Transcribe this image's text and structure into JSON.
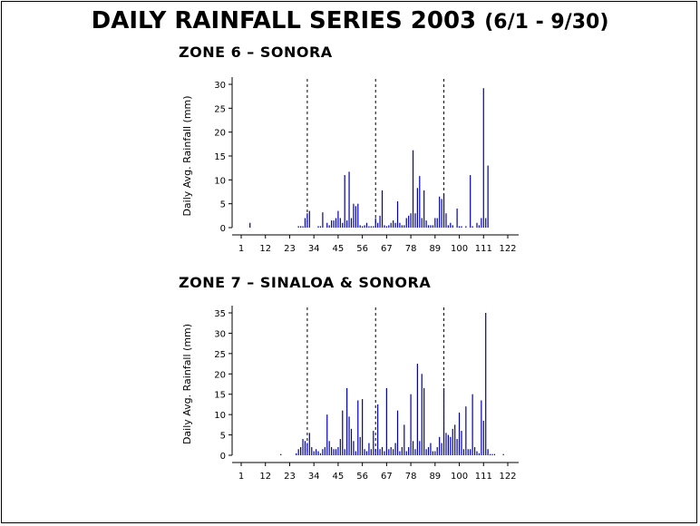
{
  "title": "DAILY RAINFALL SERIES 2003",
  "subtitle": "(6/1 - 9/30)",
  "chart_data": [
    {
      "type": "bar",
      "title": "ZONE 6 – SONORA",
      "xlabel": "",
      "ylabel": "Daily Avg. Rainfall (mm)",
      "xlim": [
        1,
        122
      ],
      "ylim": [
        0,
        30
      ],
      "x_ticks": [
        "1",
        "12",
        "23",
        "34",
        "45",
        "56",
        "67",
        "78",
        "89",
        "100",
        "111",
        "122"
      ],
      "y_ticks": [
        "0",
        "5",
        "10",
        "15",
        "20",
        "25",
        "30"
      ],
      "vlines": [
        31,
        62,
        93
      ],
      "color": "#0000aa",
      "x": [
        5,
        27,
        28,
        29,
        30,
        31,
        32,
        36,
        37,
        38,
        40,
        41,
        42,
        43,
        44,
        45,
        46,
        47,
        48,
        49,
        50,
        51,
        52,
        53,
        54,
        55,
        56,
        57,
        58,
        59,
        60,
        61,
        62,
        63,
        64,
        65,
        66,
        67,
        68,
        69,
        70,
        71,
        72,
        73,
        74,
        75,
        76,
        77,
        78,
        79,
        80,
        81,
        82,
        83,
        84,
        85,
        86,
        87,
        88,
        89,
        90,
        91,
        92,
        93,
        94,
        95,
        96,
        97,
        99,
        100,
        101,
        103,
        105,
        106,
        108,
        109,
        110,
        111,
        112,
        113
      ],
      "values": [
        1,
        0.3,
        0.3,
        0.3,
        2,
        3,
        3.5,
        0.3,
        0.3,
        3.2,
        1,
        0.5,
        1.5,
        1.5,
        2,
        3.5,
        2,
        1,
        11,
        1.5,
        11.7,
        2,
        5,
        4.5,
        5,
        0.5,
        0.3,
        0.5,
        1,
        0.3,
        0.3,
        0.3,
        2,
        1,
        2.5,
        7.8,
        0.5,
        0.3,
        0.5,
        1,
        1.5,
        1,
        5.5,
        1,
        0.5,
        0.5,
        2,
        2.5,
        3,
        16.2,
        3,
        8.3,
        10.8,
        2,
        7.8,
        1.5,
        0.5,
        0.5,
        0.5,
        2,
        2,
        6.5,
        6,
        7,
        3,
        0.5,
        1,
        0.5,
        4,
        0.3,
        0.3,
        0.3,
        11,
        0.3,
        1,
        0.5,
        2,
        29.2,
        2,
        13
      ]
    },
    {
      "type": "bar",
      "title": "ZONE 7 – SINALOA & SONORA",
      "xlabel": "",
      "ylabel": "Daily Avg. Rainfall (mm)",
      "xlim": [
        1,
        122
      ],
      "ylim": [
        0,
        35
      ],
      "x_ticks": [
        "1",
        "12",
        "23",
        "34",
        "45",
        "56",
        "67",
        "78",
        "89",
        "100",
        "111",
        "122"
      ],
      "y_ticks": [
        "0",
        "5",
        "10",
        "15",
        "20",
        "25",
        "30",
        "35"
      ],
      "vlines": [
        31,
        62,
        93
      ],
      "color": "#0000aa",
      "x": [
        19,
        26,
        27,
        28,
        29,
        30,
        31,
        32,
        33,
        34,
        35,
        36,
        37,
        38,
        39,
        40,
        41,
        42,
        43,
        44,
        45,
        46,
        47,
        48,
        49,
        50,
        51,
        52,
        53,
        54,
        55,
        56,
        57,
        58,
        59,
        60,
        61,
        62,
        63,
        64,
        65,
        66,
        67,
        68,
        69,
        70,
        71,
        72,
        73,
        74,
        75,
        76,
        77,
        78,
        79,
        80,
        81,
        82,
        83,
        84,
        85,
        86,
        87,
        88,
        89,
        90,
        91,
        92,
        93,
        94,
        95,
        96,
        97,
        98,
        99,
        100,
        101,
        102,
        103,
        104,
        105,
        106,
        107,
        108,
        109,
        110,
        111,
        112,
        113,
        114,
        115,
        116,
        120
      ],
      "values": [
        0.3,
        0.5,
        1.5,
        2,
        4,
        3.5,
        3,
        5.5,
        2,
        1,
        1.5,
        1,
        0.5,
        1.5,
        2,
        10,
        3.5,
        2,
        1.5,
        1.5,
        2,
        4,
        11,
        1.5,
        16.5,
        9.5,
        6.5,
        3.5,
        1,
        13.5,
        4.5,
        13.8,
        1.5,
        1,
        3,
        1.5,
        6,
        1.5,
        12.5,
        1.5,
        2,
        1,
        16.5,
        1.5,
        2,
        1.5,
        3,
        11,
        1,
        2,
        7.5,
        1,
        2,
        15,
        3.5,
        1.5,
        22.5,
        3.5,
        20,
        16.5,
        1.5,
        2,
        3,
        1,
        1,
        2,
        4.5,
        3,
        16.5,
        5.5,
        5,
        4.5,
        6.5,
        7.5,
        4,
        10.5,
        6,
        1.5,
        12,
        1.5,
        1.5,
        15,
        2,
        1,
        0.5,
        13.5,
        8.5,
        35,
        1.5,
        0.3,
        0.3,
        0.3,
        0.3
      ]
    }
  ]
}
